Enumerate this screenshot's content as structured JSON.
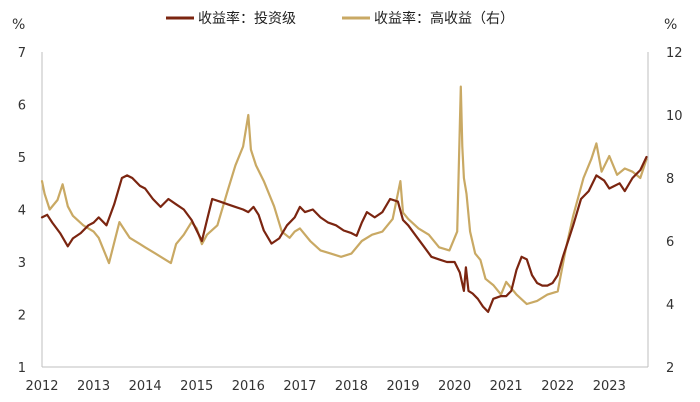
{
  "chart_data": {
    "type": "line",
    "title": "",
    "xlabel": "",
    "ylabel": "%",
    "y2label": "%",
    "legend_position": "top-center",
    "grid": false,
    "xlim": [
      2012.0,
      2023.75
    ],
    "ylim": [
      1,
      7
    ],
    "y2lim": [
      2,
      12
    ],
    "x_ticks": [
      2012,
      2013,
      2014,
      2015,
      2016,
      2017,
      2018,
      2019,
      2020,
      2021,
      2022,
      2023
    ],
    "x_tick_labels": [
      "2012",
      "2013",
      "2014",
      "2015",
      "2016",
      "2017",
      "2018",
      "2019",
      "2020",
      "2021",
      "2022",
      "2023"
    ],
    "y_ticks": [
      1,
      2,
      3,
      4,
      5,
      6,
      7
    ],
    "y_tick_labels": [
      "1",
      "2",
      "3",
      "4",
      "5",
      "6",
      "7"
    ],
    "y2_ticks": [
      2,
      4,
      6,
      8,
      10,
      12
    ],
    "y2_tick_labels": [
      "2",
      "4",
      "6",
      "8",
      "10",
      "12"
    ],
    "series": [
      {
        "name": "收益率：投资级",
        "axis": "left",
        "color": "#7b2510",
        "x": [
          2012.0,
          2012.1,
          2012.2,
          2012.35,
          2012.5,
          2012.6,
          2012.75,
          2012.9,
          2013.0,
          2013.1,
          2013.25,
          2013.4,
          2013.55,
          2013.65,
          2013.75,
          2013.9,
          2014.0,
          2014.15,
          2014.3,
          2014.45,
          2014.6,
          2014.75,
          2014.9,
          2015.0,
          2015.1,
          2015.2,
          2015.3,
          2015.45,
          2015.6,
          2015.75,
          2015.9,
          2016.0,
          2016.1,
          2016.2,
          2016.3,
          2016.45,
          2016.6,
          2016.75,
          2016.9,
          2017.0,
          2017.1,
          2017.25,
          2017.4,
          2017.55,
          2017.7,
          2017.85,
          2018.0,
          2018.1,
          2018.2,
          2018.3,
          2018.45,
          2018.6,
          2018.75,
          2018.9,
          2019.0,
          2019.1,
          2019.25,
          2019.4,
          2019.55,
          2019.7,
          2019.85,
          2020.0,
          2020.1,
          2020.18,
          2020.22,
          2020.27,
          2020.35,
          2020.45,
          2020.55,
          2020.65,
          2020.75,
          2020.9,
          2021.0,
          2021.1,
          2021.2,
          2021.3,
          2021.4,
          2021.5,
          2021.6,
          2021.7,
          2021.8,
          2021.9,
          2022.0,
          2022.1,
          2022.2,
          2022.3,
          2022.45,
          2022.6,
          2022.75,
          2022.9,
          2023.0,
          2023.1,
          2023.2,
          2023.3,
          2023.45,
          2023.6,
          2023.72
        ],
        "values": [
          3.85,
          3.9,
          3.75,
          3.55,
          3.3,
          3.45,
          3.55,
          3.7,
          3.75,
          3.85,
          3.7,
          4.1,
          4.6,
          4.65,
          4.6,
          4.45,
          4.4,
          4.2,
          4.05,
          4.2,
          4.1,
          4.0,
          3.8,
          3.6,
          3.4,
          3.8,
          4.2,
          4.15,
          4.1,
          4.05,
          4.0,
          3.95,
          4.05,
          3.9,
          3.6,
          3.35,
          3.45,
          3.7,
          3.85,
          4.05,
          3.95,
          4.0,
          3.85,
          3.75,
          3.7,
          3.6,
          3.55,
          3.5,
          3.75,
          3.95,
          3.85,
          3.95,
          4.2,
          4.15,
          3.8,
          3.7,
          3.5,
          3.3,
          3.1,
          3.05,
          3.0,
          3.0,
          2.8,
          2.45,
          2.9,
          2.45,
          2.4,
          2.3,
          2.15,
          2.05,
          2.3,
          2.35,
          2.35,
          2.45,
          2.85,
          3.1,
          3.05,
          2.75,
          2.6,
          2.55,
          2.55,
          2.6,
          2.75,
          3.1,
          3.4,
          3.7,
          4.2,
          4.35,
          4.65,
          4.55,
          4.4,
          4.45,
          4.5,
          4.35,
          4.6,
          4.75,
          5.0
        ]
      },
      {
        "name": "收益率：高收益（右）",
        "axis": "right",
        "color": "#c9a964",
        "x": [
          2012.0,
          2012.05,
          2012.15,
          2012.3,
          2012.4,
          2012.5,
          2012.6,
          2012.8,
          2013.0,
          2013.1,
          2013.3,
          2013.5,
          2013.7,
          2013.9,
          2014.0,
          2014.2,
          2014.4,
          2014.5,
          2014.6,
          2014.75,
          2014.9,
          2015.0,
          2015.1,
          2015.2,
          2015.4,
          2015.6,
          2015.75,
          2015.9,
          2016.0,
          2016.05,
          2016.15,
          2016.3,
          2016.5,
          2016.65,
          2016.8,
          2016.9,
          2017.0,
          2017.2,
          2017.4,
          2017.6,
          2017.8,
          2018.0,
          2018.2,
          2018.4,
          2018.6,
          2018.8,
          2018.95,
          2019.0,
          2019.1,
          2019.3,
          2019.5,
          2019.7,
          2019.9,
          2020.05,
          2020.12,
          2020.15,
          2020.18,
          2020.23,
          2020.3,
          2020.4,
          2020.5,
          2020.6,
          2020.75,
          2020.9,
          2021.0,
          2021.2,
          2021.4,
          2021.6,
          2021.8,
          2022.0,
          2022.15,
          2022.3,
          2022.5,
          2022.65,
          2022.75,
          2022.85,
          2023.0,
          2023.15,
          2023.3,
          2023.45,
          2023.6,
          2023.72
        ],
        "values": [
          7.9,
          7.5,
          7.0,
          7.3,
          7.8,
          7.1,
          6.8,
          6.5,
          6.3,
          6.1,
          5.3,
          6.6,
          6.1,
          5.9,
          5.8,
          5.6,
          5.4,
          5.3,
          5.9,
          6.2,
          6.6,
          6.4,
          5.9,
          6.2,
          6.5,
          7.6,
          8.4,
          9.0,
          10.0,
          8.9,
          8.4,
          7.9,
          7.1,
          6.3,
          6.1,
          6.3,
          6.4,
          6.0,
          5.7,
          5.6,
          5.5,
          5.6,
          6.0,
          6.2,
          6.3,
          6.7,
          7.9,
          6.9,
          6.7,
          6.4,
          6.2,
          5.8,
          5.7,
          6.3,
          10.9,
          9.0,
          8.0,
          7.5,
          6.3,
          5.6,
          5.4,
          4.8,
          4.6,
          4.3,
          4.7,
          4.3,
          4.0,
          4.1,
          4.3,
          4.4,
          5.7,
          6.8,
          8.0,
          8.6,
          9.1,
          8.2,
          8.7,
          8.1,
          8.3,
          8.2,
          8.0,
          8.6
        ]
      }
    ]
  }
}
